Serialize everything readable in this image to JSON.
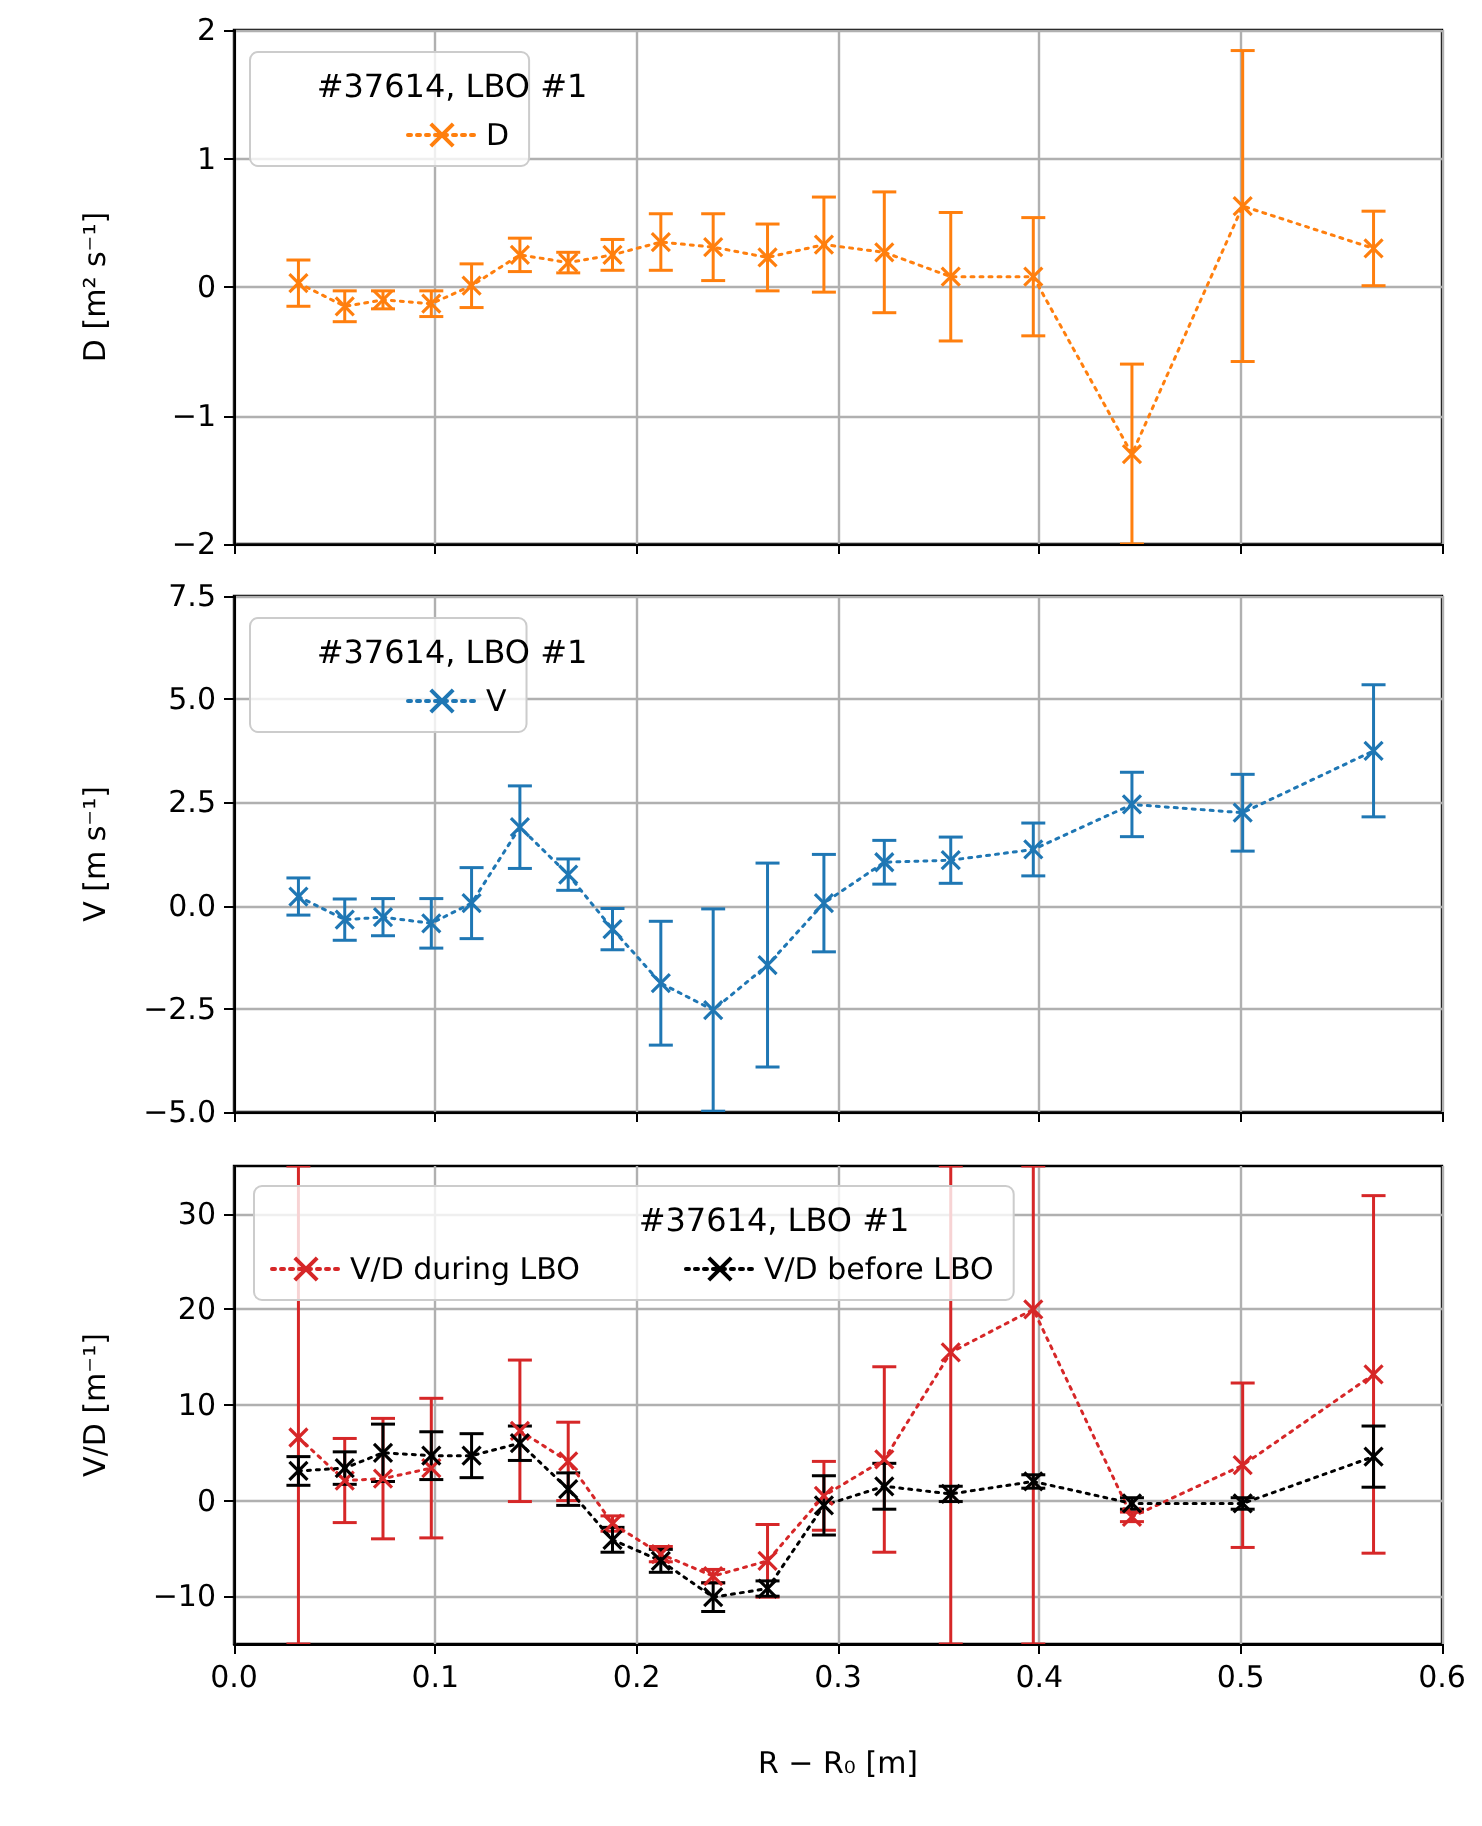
{
  "chart_data": [
    {
      "type": "line",
      "legend_title": "#37614, LBO #1",
      "ylabel": "D [m² s⁻¹]",
      "legend": "top left",
      "grid": true,
      "marker": "cross",
      "line_style": "dotted",
      "tick_labels": "y",
      "x": [
        0.032,
        0.055,
        0.074,
        0.098,
        0.118,
        0.142,
        0.166,
        0.188,
        0.212,
        0.238,
        0.265,
        0.293,
        0.323,
        0.356,
        0.397,
        0.446,
        0.501,
        0.566
      ],
      "xlim": [
        0,
        0.6
      ],
      "xticks": [
        0,
        0.1,
        0.2,
        0.3,
        0.4,
        0.5,
        0.6
      ],
      "ylim": [
        -2,
        2
      ],
      "yticks": [
        {
          "value": -2,
          "label": "−2"
        },
        {
          "value": -1,
          "label": "−1"
        },
        0,
        1,
        2
      ],
      "series": [
        {
          "name": "D",
          "color": "#ff7f0e",
          "values": [
            0.03,
            -0.15,
            -0.1,
            -0.13,
            0.01,
            0.25,
            0.19,
            0.25,
            0.35,
            0.31,
            0.23,
            0.33,
            0.27,
            0.08,
            0.08,
            -1.3,
            0.63,
            0.3
          ],
          "errors": [
            0.18,
            0.12,
            0.07,
            0.1,
            0.17,
            0.13,
            0.08,
            0.12,
            0.22,
            0.26,
            0.26,
            0.37,
            0.47,
            0.5,
            0.46,
            0.7,
            1.21,
            0.29
          ]
        }
      ]
    },
    {
      "type": "line",
      "legend_title": "#37614, LBO #1",
      "ylabel": "V [m s⁻¹]",
      "legend": "top left",
      "grid": true,
      "marker": "cross",
      "line_style": "dotted",
      "tick_labels": "y",
      "x": [
        0.032,
        0.055,
        0.074,
        0.098,
        0.118,
        0.142,
        0.166,
        0.188,
        0.212,
        0.238,
        0.265,
        0.293,
        0.323,
        0.356,
        0.397,
        0.446,
        0.501,
        0.566
      ],
      "xlim": [
        0,
        0.6
      ],
      "xticks": [
        0,
        0.1,
        0.2,
        0.3,
        0.4,
        0.5,
        0.6
      ],
      "ylim": [
        -5,
        7.5
      ],
      "yticks": [
        {
          "value": -5,
          "label": "−5.0"
        },
        {
          "value": -2.5,
          "label": "−2.5"
        },
        {
          "value": 0,
          "label": "0.0"
        },
        2.5,
        {
          "value": 5,
          "label": "5.0"
        },
        7.5
      ],
      "series": [
        {
          "name": "V",
          "color": "#1f77b4",
          "values": [
            0.22,
            -0.34,
            -0.28,
            -0.43,
            0.06,
            1.9,
            0.75,
            -0.57,
            -1.88,
            -2.53,
            -1.44,
            0.06,
            1.05,
            1.1,
            1.36,
            2.45,
            2.25,
            3.75
          ],
          "errors": [
            0.45,
            0.5,
            0.45,
            0.6,
            0.86,
            1.0,
            0.38,
            0.5,
            1.5,
            2.45,
            2.47,
            1.18,
            0.53,
            0.56,
            0.64,
            0.78,
            0.93,
            1.6
          ]
        }
      ]
    },
    {
      "type": "line",
      "legend_title": "#37614, LBO #1",
      "xlabel": "R − R₀ [m]",
      "ylabel": "V/D [m⁻¹]",
      "legend": "top",
      "grid": true,
      "marker": "cross",
      "line_style": "dotted",
      "x": [
        0.032,
        0.055,
        0.074,
        0.098,
        0.118,
        0.142,
        0.166,
        0.188,
        0.212,
        0.238,
        0.265,
        0.293,
        0.323,
        0.356,
        0.397,
        0.446,
        0.501,
        0.566
      ],
      "xlim": [
        0,
        0.6
      ],
      "xticks": [
        {
          "value": 0,
          "label": "0.0"
        },
        0.1,
        0.2,
        0.3,
        0.4,
        0.5,
        0.6
      ],
      "ylim": [
        -15,
        35
      ],
      "yticks": [
        {
          "value": -10,
          "label": "−10"
        },
        0,
        10,
        20,
        30
      ],
      "series": [
        {
          "name": "V/D during LBO",
          "color": "#d62728",
          "values": [
            6.6,
            2.1,
            2.3,
            3.4,
            null,
            7.3,
            4.1,
            -2.4,
            -5.6,
            -7.9,
            -6.3,
            0.5,
            4.3,
            15.5,
            20,
            -1.7,
            3.7,
            13.2
          ],
          "errors": [
            [
              -15,
              35
            ],
            4.4,
            6.3,
            7.3,
            null,
            7.4,
            4.1,
            0.8,
            0.8,
            0.7,
            3.8,
            3.6,
            9.7,
            [
              -15,
              35
            ],
            [
              -15,
              35
            ],
            0.5,
            8.6,
            18.7
          ]
        },
        {
          "name": "V/D before LBO",
          "color": "#000000",
          "values": [
            3.1,
            3.4,
            5.0,
            4.7,
            4.7,
            6.0,
            1.2,
            -4.1,
            -6.3,
            -10.1,
            -9.2,
            -0.5,
            1.5,
            0.7,
            2.0,
            -0.3,
            -0.3,
            4.6
          ],
          "errors": [
            1.5,
            1.7,
            3,
            2.5,
            2.3,
            1.8,
            1.7,
            1.3,
            1.2,
            1.5,
            0.8,
            3.1,
            2.4,
            0.8,
            0.7,
            0.6,
            0.6,
            3.2
          ]
        }
      ]
    }
  ]
}
